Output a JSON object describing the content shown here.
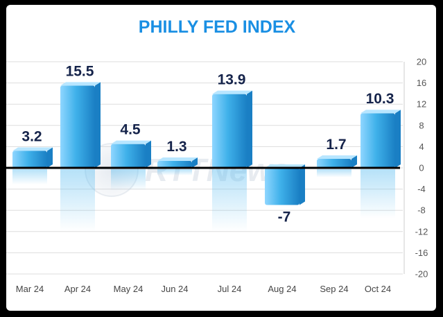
{
  "chart_data": {
    "type": "bar",
    "title": "PHILLY FED INDEX",
    "categories": [
      "Mar 24",
      "Apr 24",
      "May 24",
      "Jun 24",
      "Jul 24",
      "Aug 24",
      "Sep 24",
      "Oct 24"
    ],
    "values": [
      3.2,
      15.5,
      4.5,
      1.3,
      13.9,
      -7,
      1.7,
      10.3
    ],
    "value_labels": [
      "3.2",
      "15.5",
      "4.5",
      "1.3",
      "13.9",
      "-7",
      "1.7",
      "10.3"
    ],
    "ylim": [
      -20,
      20
    ],
    "yticks": [
      20,
      16,
      12,
      8,
      4,
      0,
      -4,
      -8,
      -12,
      -16,
      -20
    ],
    "ytick_labels": [
      "20",
      "16",
      "12",
      "8",
      "4",
      "0",
      "-4",
      "-8",
      "-12",
      "-16",
      "-20"
    ],
    "yaxis_position": "right",
    "grid": true,
    "legend": "none",
    "watermark": "RTTNews",
    "colors": {
      "title": "#1a8fe3",
      "bar_light": "#8fd6ff",
      "bar_mid": "#3fb1ea",
      "bar_dark": "#1a7fc4",
      "bar_top": "#b8e6ff",
      "zero_line": "#000000",
      "grid": "#dddddd",
      "value_label": "#15234a"
    }
  }
}
